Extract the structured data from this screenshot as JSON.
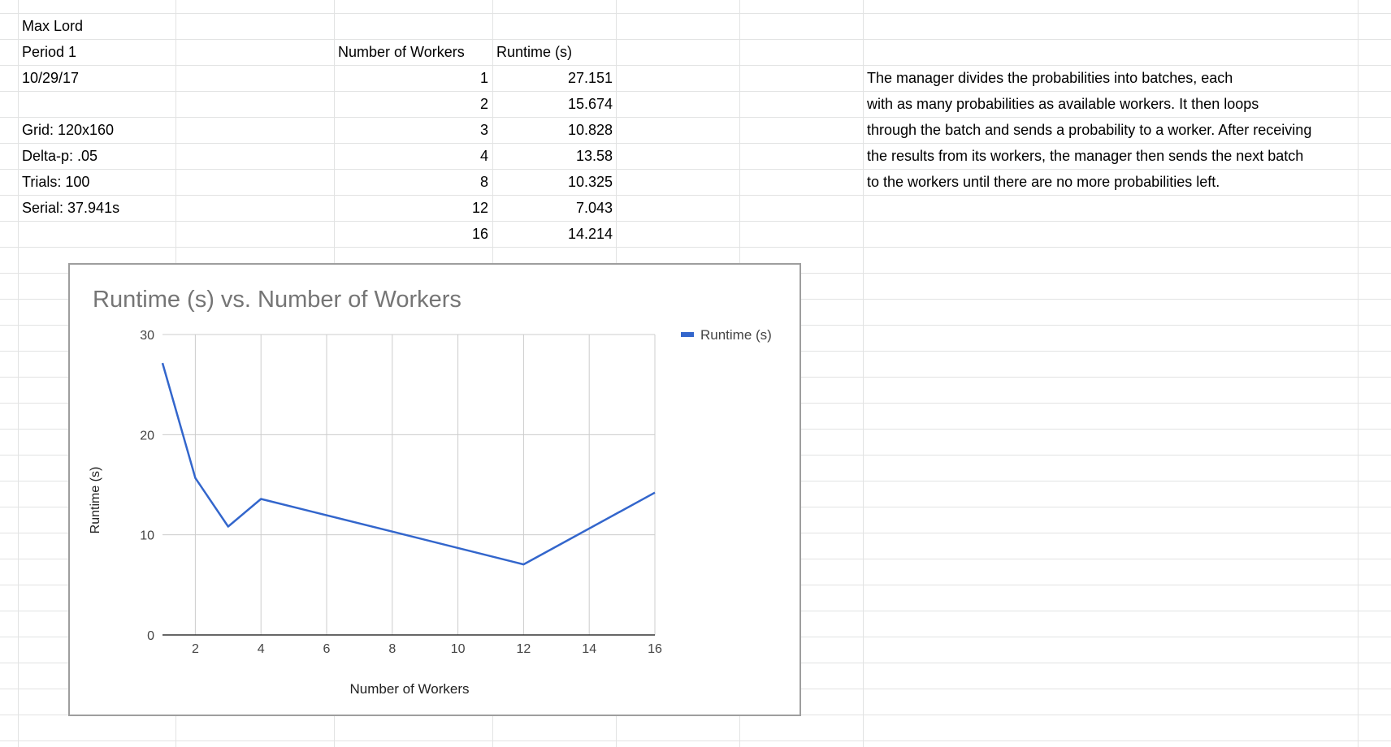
{
  "sheet": {
    "col_a": [
      "Max Lord",
      "Period 1",
      "10/29/17",
      "",
      "Grid: 120x160",
      "Delta-p: .05",
      "Trials: 100",
      "Serial: 37.941s"
    ],
    "headers": {
      "workers": "Number of Workers",
      "runtime": "Runtime (s)"
    },
    "rows": [
      {
        "workers": "1",
        "runtime": "27.151"
      },
      {
        "workers": "2",
        "runtime": "15.674"
      },
      {
        "workers": "3",
        "runtime": "10.828"
      },
      {
        "workers": "4",
        "runtime": "13.58"
      },
      {
        "workers": "8",
        "runtime": "10.325"
      },
      {
        "workers": "12",
        "runtime": "7.043"
      },
      {
        "workers": "16",
        "runtime": "14.214"
      }
    ],
    "description": [
      "The manager divides the probabilities into batches, each",
      "with as many probabilities as available workers.  It then loops",
      "through the batch and sends a probability to a worker.  After receiving",
      " the results from its workers, the manager then sends the next batch",
      "to the workers until there are no more probabilities left."
    ]
  },
  "chart_data": {
    "type": "line",
    "title": "Runtime (s) vs. Number of Workers",
    "xlabel": "Number of Workers",
    "ylabel": "Runtime (s)",
    "x": [
      1,
      2,
      3,
      4,
      8,
      12,
      16
    ],
    "series": [
      {
        "name": "Runtime (s)",
        "values": [
          27.151,
          15.674,
          10.828,
          13.58,
          10.325,
          7.043,
          14.214
        ]
      }
    ],
    "xlim": [
      1,
      16
    ],
    "ylim": [
      0,
      30
    ],
    "xticks": [
      2,
      4,
      6,
      8,
      10,
      12,
      14,
      16
    ],
    "yticks": [
      0,
      10,
      20,
      30
    ],
    "grid": true,
    "legend": "top-right",
    "line_color": "#3366cc"
  }
}
